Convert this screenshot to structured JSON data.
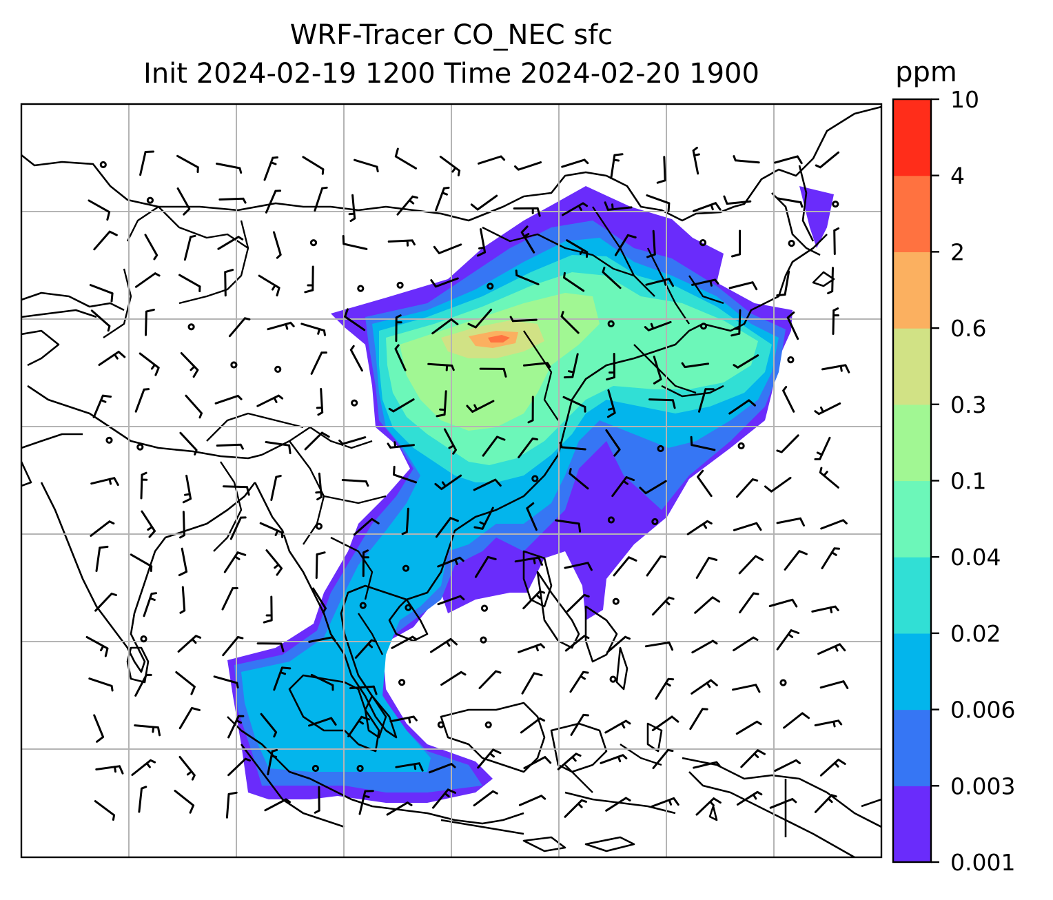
{
  "title": {
    "line1": "WRF-Tracer CO_NEC sfc",
    "line2": "Init 2024-02-19 1200 Time 2024-02-20 1900"
  },
  "colorbar": {
    "unit": "ppm",
    "levels": [
      "0.001",
      "0.003",
      "0.006",
      "0.02",
      "0.04",
      "0.1",
      "0.3",
      "0.6",
      "2",
      "4",
      "10"
    ],
    "colors": [
      "#6a2cfb",
      "#3676f4",
      "#03b5ec",
      "#31dfd5",
      "#6cf7b9",
      "#a1f793",
      "#d1e285",
      "#fbb060",
      "#ff7240",
      "#ff2d1a"
    ]
  },
  "map": {
    "gridlines": true,
    "plume_colors": {
      "level1": "#6a2cfb",
      "level2": "#3676f4",
      "level3": "#03b5ec",
      "level4": "#31dfd5",
      "level5": "#6cf7b9",
      "level6": "#a1f793",
      "level7": "#d1e285",
      "level8": "#fbb060",
      "level9": "#ff7240"
    },
    "wind_barbs": "black"
  }
}
